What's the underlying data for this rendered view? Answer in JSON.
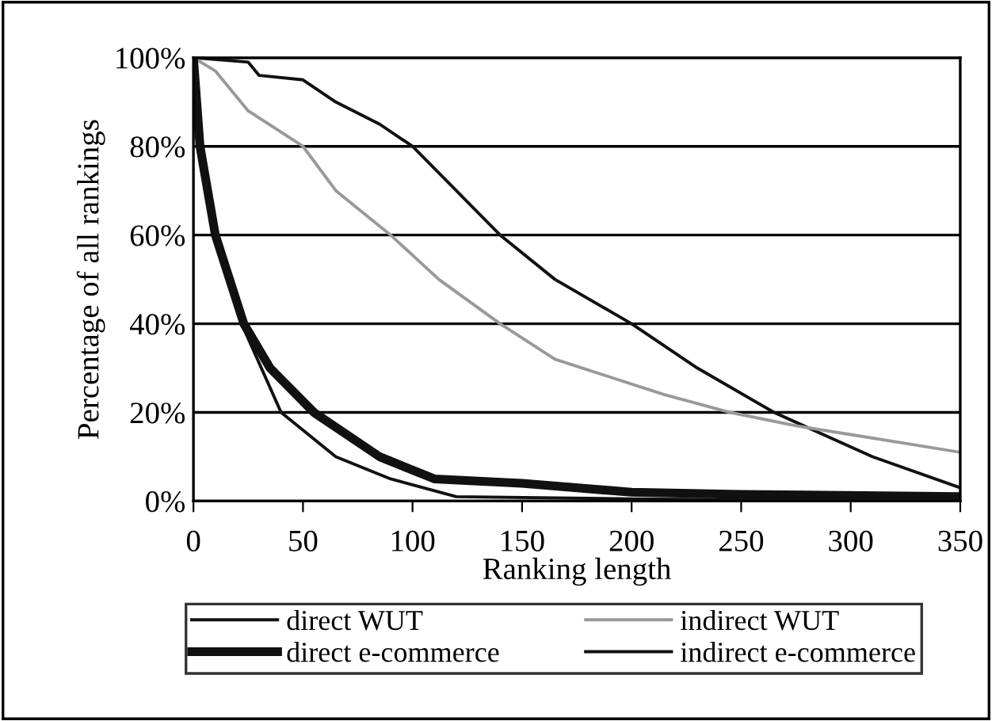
{
  "chart_data": {
    "type": "line",
    "xlabel": "Ranking length",
    "ylabel": "Percentage of all rankings",
    "xlim": [
      0,
      350
    ],
    "xticks": [
      0,
      50,
      100,
      150,
      200,
      250,
      300,
      350
    ],
    "ylim": [
      0,
      1
    ],
    "yticks": [
      {
        "value": 0,
        "label": "0%"
      },
      {
        "value": 0.2,
        "label": "20%"
      },
      {
        "value": 0.4,
        "label": "40%"
      },
      {
        "value": 0.6,
        "label": "60%"
      },
      {
        "value": 0.8,
        "label": "80%"
      },
      {
        "value": 1,
        "label": "100%"
      }
    ],
    "grid": "y",
    "legend": "bottom",
    "marker": "none",
    "series": [
      {
        "name": "direct WUT",
        "color": "#111111",
        "x": [
          0,
          25,
          30,
          50,
          65,
          85,
          100,
          120,
          140,
          165,
          200,
          230,
          265,
          310,
          350
        ],
        "values": [
          1.0,
          0.99,
          0.96,
          0.95,
          0.9,
          0.85,
          0.8,
          0.7,
          0.6,
          0.5,
          0.4,
          0.3,
          0.2,
          0.1,
          0.03
        ]
      },
      {
        "name": "indirect WUT",
        "color": "#999999",
        "x": [
          0,
          10,
          25,
          50,
          65,
          90,
          112,
          140,
          165,
          190,
          215,
          245,
          275,
          300,
          325,
          350
        ],
        "values": [
          1.0,
          0.97,
          0.88,
          0.8,
          0.7,
          0.6,
          0.5,
          0.4,
          0.32,
          0.28,
          0.24,
          0.2,
          0.17,
          0.15,
          0.13,
          0.11
        ]
      },
      {
        "name": "direct e-commerce",
        "color": "#111111",
        "x": [
          0,
          3,
          10,
          23,
          35,
          55,
          85,
          110,
          150,
          200,
          250,
          350
        ],
        "values": [
          1.0,
          0.8,
          0.6,
          0.4,
          0.3,
          0.2,
          0.1,
          0.05,
          0.04,
          0.02,
          0.015,
          0.01
        ]
      },
      {
        "name": "indirect e-commerce",
        "color": "#111111",
        "x": [
          0,
          3,
          10,
          22,
          40,
          65,
          90,
          120,
          200,
          350
        ],
        "values": [
          1.0,
          0.8,
          0.6,
          0.4,
          0.2,
          0.1,
          0.05,
          0.01,
          0.005,
          0.0
        ]
      }
    ]
  }
}
